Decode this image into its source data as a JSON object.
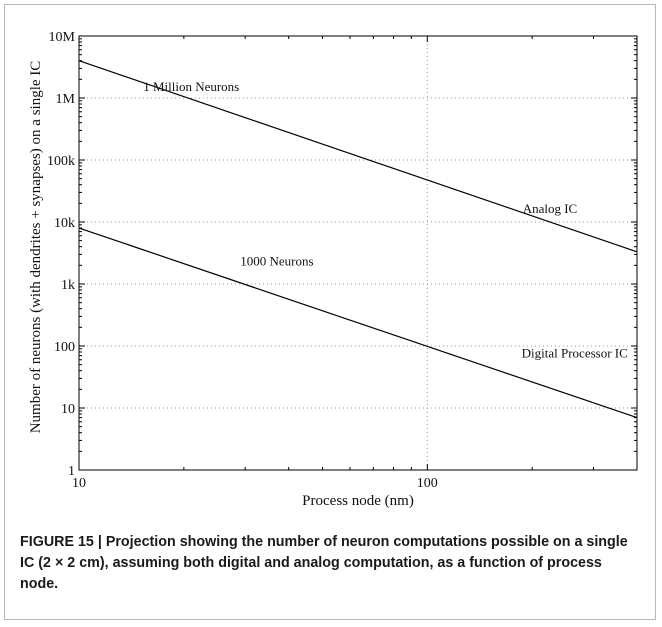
{
  "chart_data": {
    "type": "line",
    "xscale": "log",
    "yscale": "log",
    "xlim": [
      10,
      400
    ],
    "ylim": [
      1,
      10000000
    ],
    "xlabel": "Process node (nm)",
    "ylabel": "Number of neurons (with dendrites + synapses) on a single IC",
    "x_ticks": [
      {
        "value": 10,
        "label": "10"
      },
      {
        "value": 100,
        "label": "100"
      }
    ],
    "y_ticks": [
      {
        "value": 1,
        "label": "1"
      },
      {
        "value": 10,
        "label": "10"
      },
      {
        "value": 100,
        "label": "100"
      },
      {
        "value": 1000,
        "label": "1k"
      },
      {
        "value": 10000,
        "label": "10k"
      },
      {
        "value": 100000,
        "label": "100k"
      },
      {
        "value": 1000000,
        "label": "1M"
      },
      {
        "value": 10000000,
        "label": "10M"
      }
    ],
    "grid": true,
    "series": [
      {
        "name": "Analog IC",
        "x": [
          10,
          400
        ],
        "y": [
          4000000,
          3300
        ]
      },
      {
        "name": "Digital Processor IC",
        "x": [
          10,
          400
        ],
        "y": [
          8000,
          7
        ]
      }
    ],
    "annotations": [
      {
        "text": "1 Million Neurons",
        "x": 21,
        "y": 1300000
      },
      {
        "text": "1000 Neurons",
        "x": 37,
        "y": 2000
      },
      {
        "text": "Analog IC",
        "x": 225,
        "y": 14000
      },
      {
        "text": "Digital Processor IC",
        "x": 265,
        "y": 65
      }
    ]
  },
  "caption": {
    "text": "FIGURE 15 | Projection showing the number of neuron computations possible on a single IC (2 × 2 cm), assuming both digital and analog computation, as a function of process node."
  },
  "colors": {
    "line": "#000000",
    "grid": "#9a9a9a",
    "caption_text": "#1a1a1a"
  }
}
